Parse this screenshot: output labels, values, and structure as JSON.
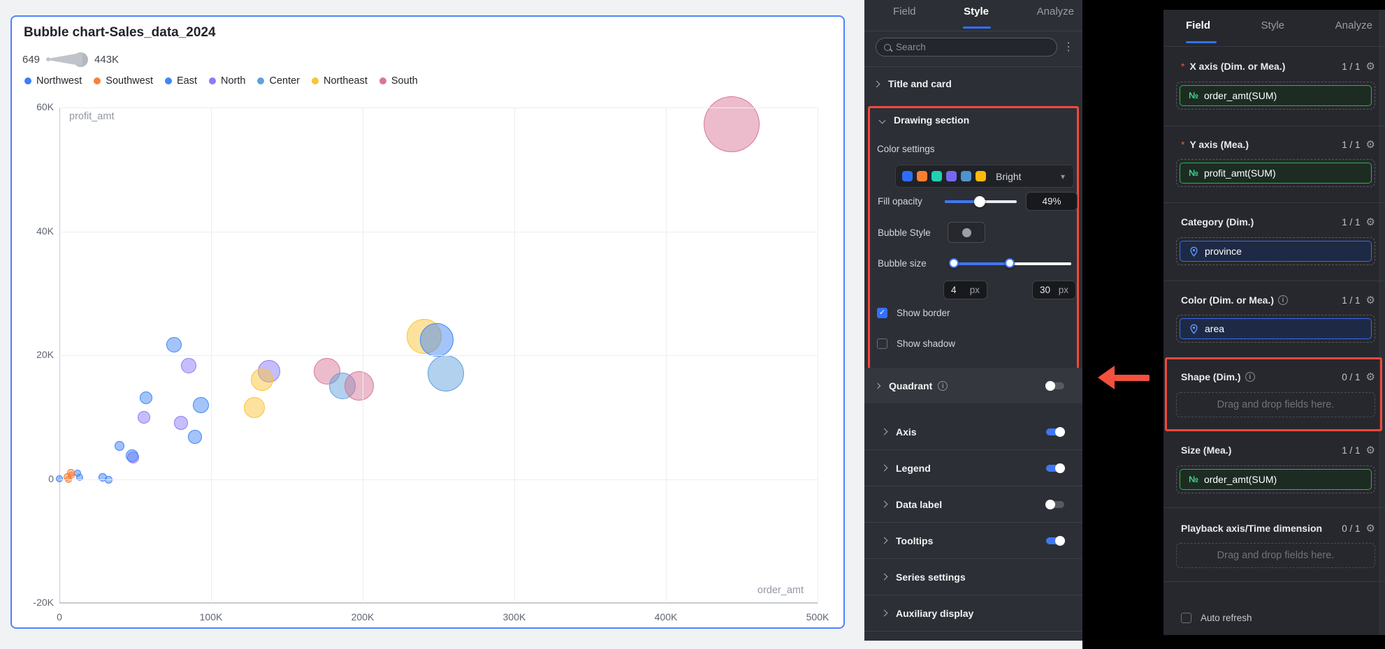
{
  "chart_card": {
    "title": "Bubble chart-Sales_data_2024",
    "size_legend": {
      "min_label": "649",
      "max_label": "443K"
    }
  },
  "chart_data": {
    "type": "bubble",
    "title": "Bubble chart-Sales_data_2024",
    "xlabel": "order_amt",
    "ylabel": "profit_amt",
    "xlim_k": [
      0,
      500
    ],
    "ylim_k": [
      -20,
      60
    ],
    "grid": true,
    "legend_position": "top",
    "x_ticks": [
      {
        "label": "0",
        "v": 0
      },
      {
        "label": "100K",
        "v": 100
      },
      {
        "label": "200K",
        "v": 200
      },
      {
        "label": "300K",
        "v": 300
      },
      {
        "label": "400K",
        "v": 400
      },
      {
        "label": "500K",
        "v": 500
      }
    ],
    "y_ticks": [
      {
        "label": "60K",
        "v": 60
      },
      {
        "label": "40K",
        "v": 40
      },
      {
        "label": "20K",
        "v": 20
      },
      {
        "label": "0",
        "v": 0
      },
      {
        "label": "-20K",
        "v": -20
      }
    ],
    "legend": [
      {
        "label": "Northwest",
        "color": "#3D7FFA"
      },
      {
        "label": "Southwest",
        "color": "#F8813D"
      },
      {
        "label": "East",
        "color": "#4186F5"
      },
      {
        "label": "North",
        "color": "#8A7BF8"
      },
      {
        "label": "Center",
        "color": "#5FA2DC"
      },
      {
        "label": "Northeast",
        "color": "#FBC337"
      },
      {
        "label": "South",
        "color": "#D97697"
      }
    ],
    "points": [
      {
        "s": "Northwest",
        "x": 0,
        "y": 0.1,
        "r": 5
      },
      {
        "s": "Northwest",
        "x": 12,
        "y": 1,
        "r": 5
      },
      {
        "s": "Northwest",
        "x": 28.6,
        "y": 0.3,
        "r": 6
      },
      {
        "s": "Northwest",
        "x": 39.6,
        "y": 5.3,
        "r": 7
      },
      {
        "s": "Southwest",
        "x": 5.5,
        "y": 0.3,
        "r": 5.5
      },
      {
        "s": "Southwest",
        "x": 7.4,
        "y": 1,
        "r": 5.5
      },
      {
        "s": "Southwest",
        "x": 7.8,
        "y": 0.6,
        "r": 5
      },
      {
        "s": "Southwest",
        "x": 6,
        "y": -0.1,
        "r": 5
      },
      {
        "s": "North",
        "x": 48.4,
        "y": 3.5,
        "r": 8.5
      },
      {
        "s": "North",
        "x": 55.8,
        "y": 10,
        "r": 9
      },
      {
        "s": "North",
        "x": 80.2,
        "y": 9.1,
        "r": 10
      },
      {
        "s": "North",
        "x": 85.3,
        "y": 18.3,
        "r": 11
      },
      {
        "s": "North",
        "x": 138.2,
        "y": 17.4,
        "r": 16
      },
      {
        "s": "East",
        "x": 13.4,
        "y": 0.3,
        "r": 5
      },
      {
        "s": "East",
        "x": 32.3,
        "y": -0.1,
        "r": 5.5
      },
      {
        "s": "East",
        "x": 47.9,
        "y": 3.8,
        "r": 9
      },
      {
        "s": "East",
        "x": 57.1,
        "y": 13.1,
        "r": 9
      },
      {
        "s": "East",
        "x": 75.6,
        "y": 21.7,
        "r": 11
      },
      {
        "s": "East",
        "x": 89.4,
        "y": 6.8,
        "r": 10
      },
      {
        "s": "East",
        "x": 93.1,
        "y": 11.9,
        "r": 11.5
      },
      {
        "s": "Northeast",
        "x": 128.6,
        "y": 11.6,
        "r": 15
      },
      {
        "s": "Northeast",
        "x": 133.6,
        "y": 16.1,
        "r": 16
      },
      {
        "s": "Northeast",
        "x": 240.6,
        "y": 23,
        "r": 25
      },
      {
        "s": "East",
        "x": 248.8,
        "y": 22.5,
        "r": 24
      },
      {
        "s": "South",
        "x": 176.5,
        "y": 17.4,
        "r": 19
      },
      {
        "s": "Center",
        "x": 186.6,
        "y": 15,
        "r": 19
      },
      {
        "s": "Center",
        "x": 254.8,
        "y": 17.1,
        "r": 26
      },
      {
        "s": "South",
        "x": 197.7,
        "y": 15,
        "r": 21
      },
      {
        "s": "South",
        "x": 443.3,
        "y": 57.3,
        "r": 40
      }
    ]
  },
  "style_panel": {
    "tabs": [
      {
        "label": "Field",
        "active": false
      },
      {
        "label": "Style",
        "active": true
      },
      {
        "label": "Analyze",
        "active": false
      }
    ],
    "search": {
      "placeholder": "Search"
    },
    "title_and_card_label": "Title and card",
    "drawing": {
      "header": "Drawing section",
      "color_settings_label": "Color settings",
      "palette_swatches": [
        "#2F6BFF",
        "#FB7F32",
        "#21D0B3",
        "#7468F0",
        "#4E93CE",
        "#FFB80D"
      ],
      "palette_name": "Bright",
      "fill_opacity_label": "Fill opacity",
      "fill_opacity_value": "49%",
      "fill_opacity_pct": 49,
      "bubble_style_label": "Bubble Style",
      "bubble_size_label": "Bubble size",
      "bubble_size_min": "4",
      "bubble_size_max": "30",
      "px_unit": "px",
      "show_border_label": "Show border",
      "show_border_checked": true,
      "show_shadow_label": "Show shadow",
      "show_shadow_checked": false,
      "quadrant_label": "Quadrant"
    },
    "sections": [
      {
        "label": "Axis",
        "toggle": "on"
      },
      {
        "label": "Legend",
        "toggle": "on"
      },
      {
        "label": "Data label",
        "toggle": "off"
      },
      {
        "label": "Tooltips",
        "toggle": "on"
      },
      {
        "label": "Series settings",
        "toggle": null
      },
      {
        "label": "Auxiliary display",
        "toggle": null
      }
    ]
  },
  "field_panel": {
    "tabs": [
      {
        "label": "Field",
        "active": true
      },
      {
        "label": "Style",
        "active": false
      },
      {
        "label": "Analyze",
        "active": false
      }
    ],
    "sections": [
      {
        "title": "X axis (Dim. or Mea.)",
        "required": true,
        "info": false,
        "count": "1 / 1",
        "fields": [
          {
            "type": "measure",
            "label": "order_amt(SUM)"
          }
        ]
      },
      {
        "title": "Y axis (Mea.)",
        "required": true,
        "info": false,
        "count": "1 / 1",
        "fields": [
          {
            "type": "measure",
            "label": "profit_amt(SUM)"
          }
        ]
      },
      {
        "title": "Category (Dim.)",
        "required": false,
        "info": false,
        "count": "1 / 1",
        "fields": [
          {
            "type": "dimension",
            "label": "province"
          }
        ]
      },
      {
        "title": "Color (Dim. or Mea.)",
        "required": false,
        "info": true,
        "count": "1 / 1",
        "fields": [
          {
            "type": "dimension",
            "label": "area"
          }
        ]
      },
      {
        "title": "Shape (Dim.)",
        "required": false,
        "info": true,
        "count": "0 / 1",
        "fields": [],
        "placeholder": "Drag and drop fields here.",
        "highlighted": true
      },
      {
        "title": "Size (Mea.)",
        "required": false,
        "info": false,
        "count": "1 / 1",
        "fields": [
          {
            "type": "measure",
            "label": "order_amt(SUM)"
          }
        ]
      },
      {
        "title": "Playback axis/Time dimension",
        "required": false,
        "info": false,
        "count": "0 / 1",
        "fields": [],
        "placeholder": "Drag and drop fields here."
      }
    ],
    "auto_refresh_label": "Auto refresh",
    "auto_refresh_checked": false
  },
  "annotation_colors": {
    "highlight_red": "#F4483B",
    "accent_blue": "#3370FF"
  }
}
